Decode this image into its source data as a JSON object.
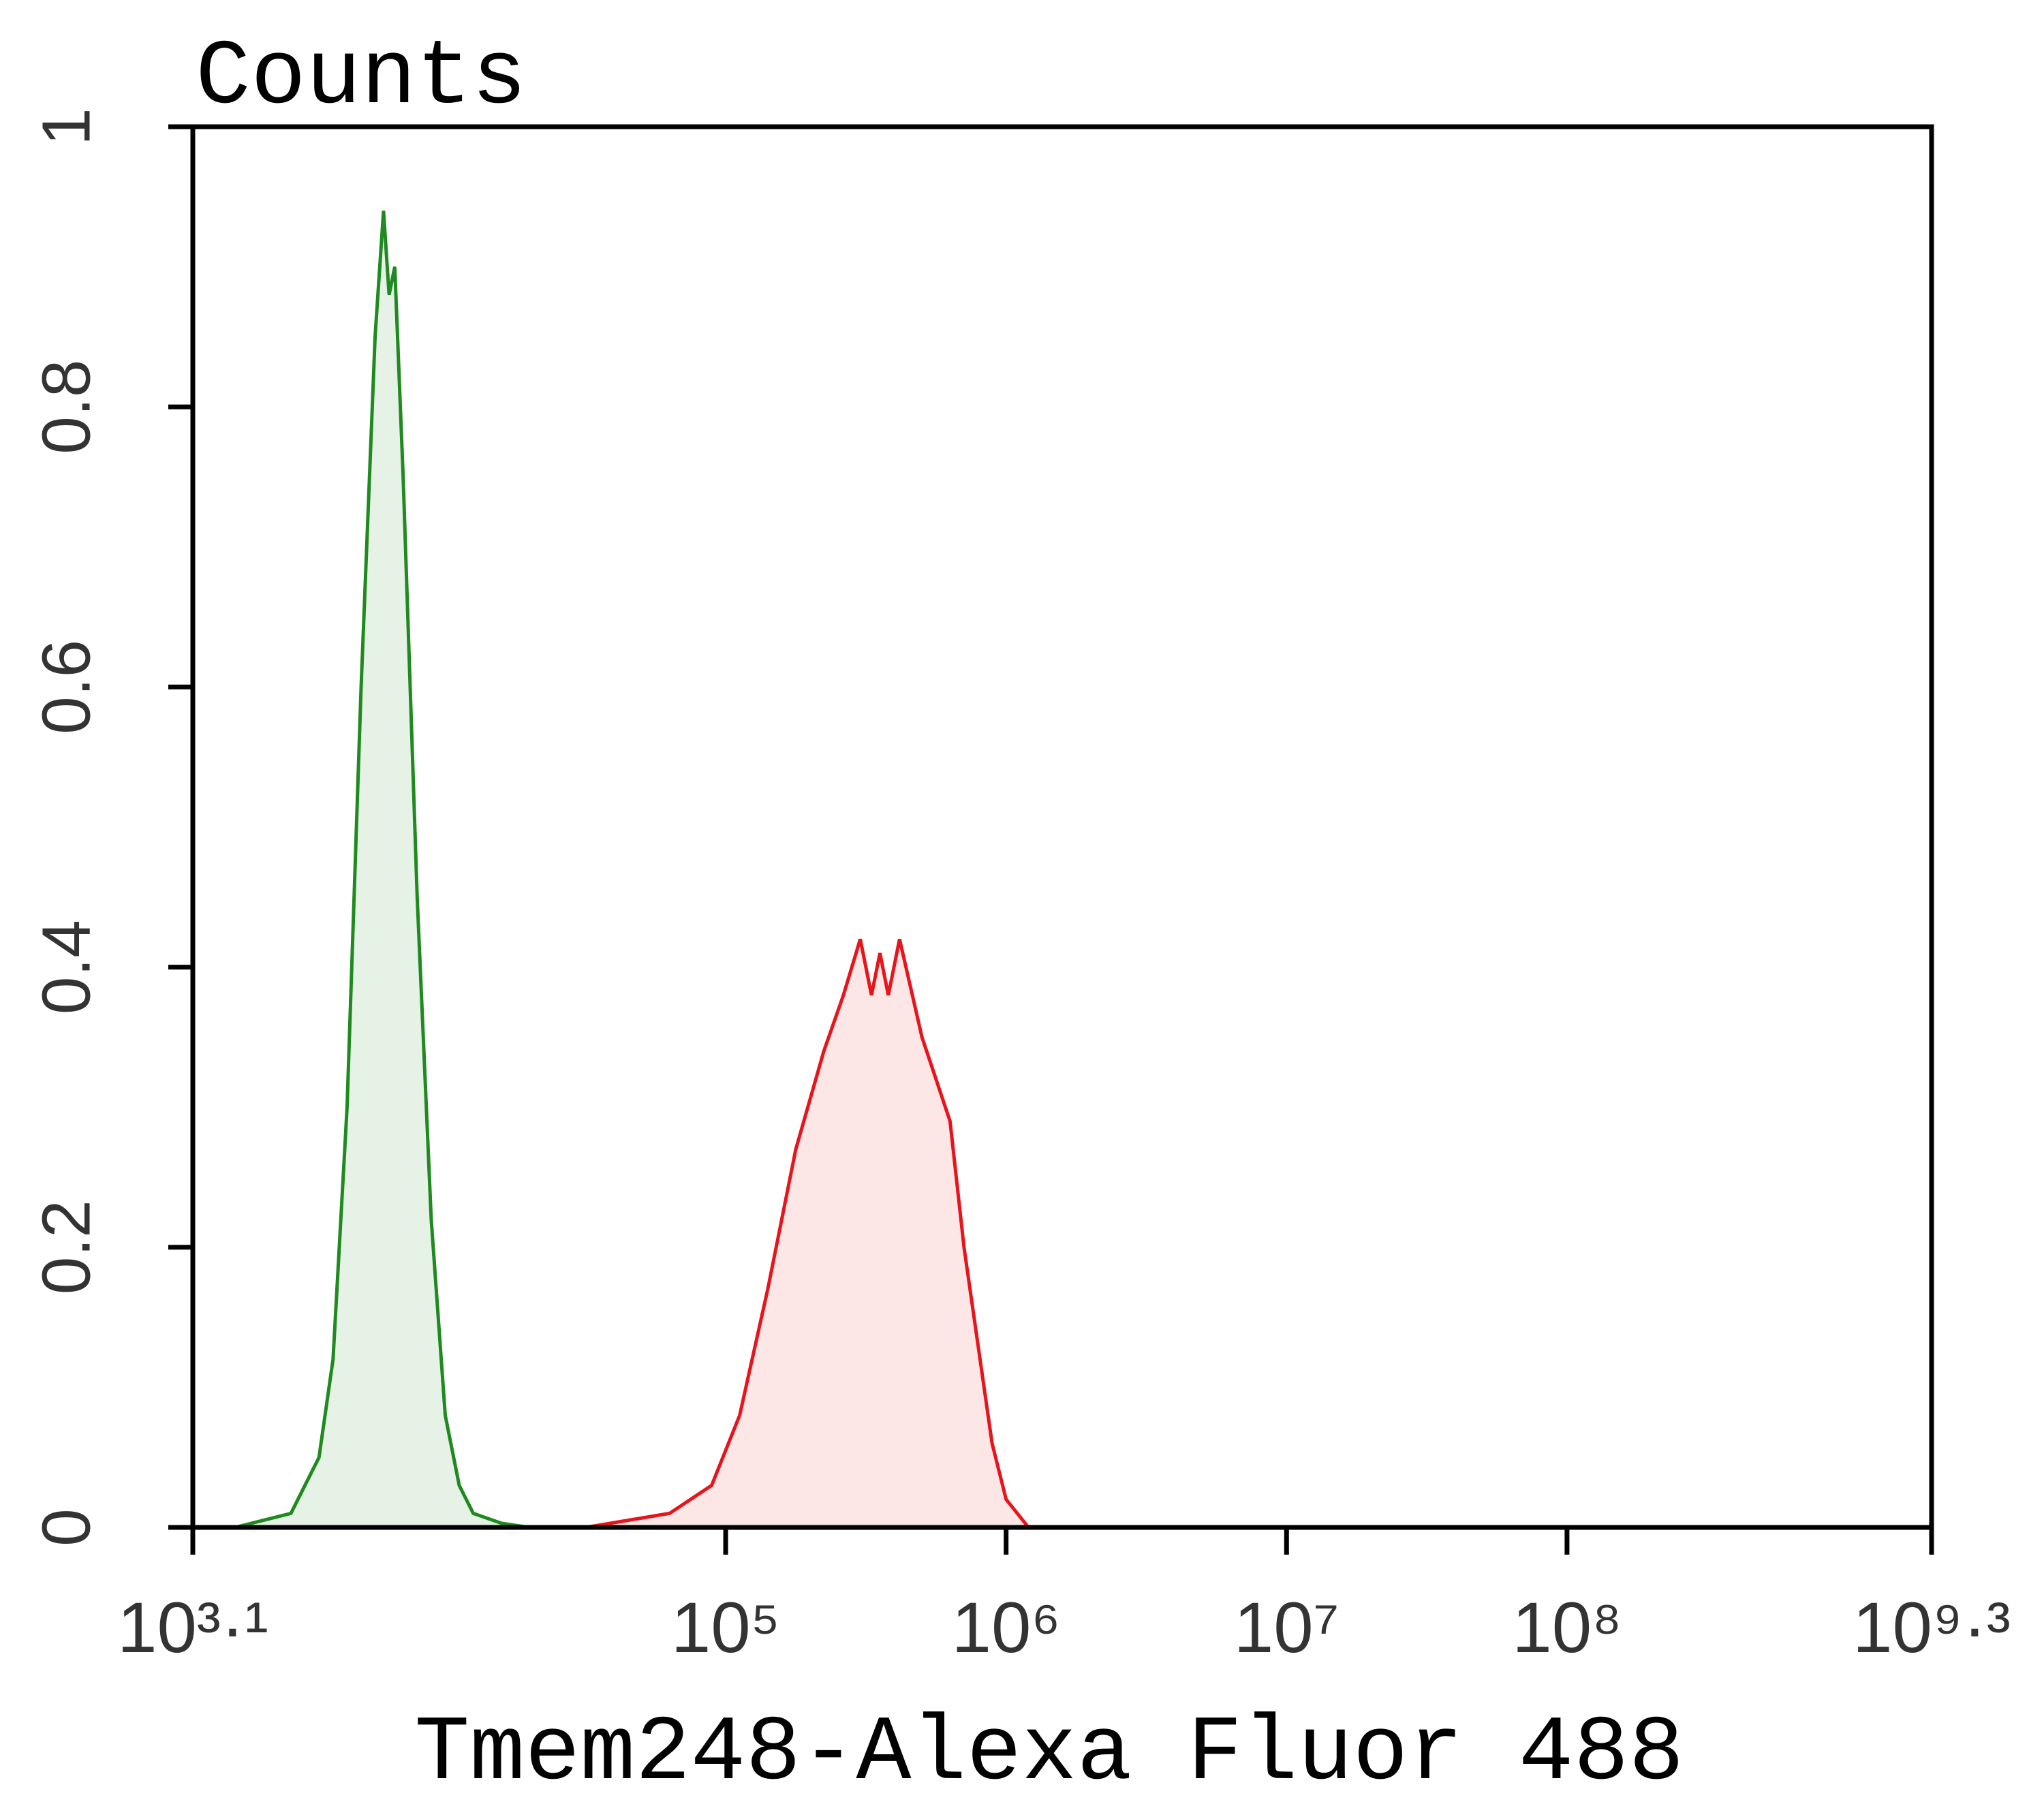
{
  "chart_data": {
    "type": "histogram-overlay",
    "y_label": "Counts",
    "x_label": "Tmem248-Alexa Fluor 488",
    "x_scale": "log",
    "xlim": [
      1258.925,
      1995262315
    ],
    "xticks": [
      {
        "value": 1258.925,
        "label": "10³·¹"
      },
      {
        "value": 100000,
        "label": "10⁵"
      },
      {
        "value": 1000000,
        "label": "10⁶"
      },
      {
        "value": 10000000,
        "label": "10⁷"
      },
      {
        "value": 100000000,
        "label": "10⁸"
      },
      {
        "value": 1995262315,
        "label": "10⁹·³"
      }
    ],
    "ylim": [
      0,
      1
    ],
    "yticks": [
      0,
      0.2,
      0.4,
      0.6,
      0.8,
      1
    ],
    "series": [
      {
        "color": "#1f8a1f",
        "fill": "#e6f2e6",
        "x": [
          1778,
          2239,
          2818,
          3548,
          3981,
          4467,
          5012,
          5623,
          6026,
          6310,
          6607,
          7079,
          7943,
          8913,
          10000,
          11220,
          12589,
          15849,
          19953
        ],
        "values": [
          0,
          0.005,
          0.01,
          0.05,
          0.12,
          0.3,
          0.6,
          0.85,
          0.94,
          0.88,
          0.9,
          0.75,
          0.45,
          0.22,
          0.08,
          0.03,
          0.01,
          0.003,
          0
        ]
      },
      {
        "color": "#e8141c",
        "fill": "#fde6e6",
        "x": [
          31623,
          63096,
          89125,
          112202,
          141254,
          177828,
          223872,
          263027,
          301995,
          331131,
          354813,
          380189,
          416869,
          501187,
          630957,
          707946,
          794328,
          891251,
          1000000,
          1202264
        ],
        "values": [
          0,
          0.01,
          0.03,
          0.08,
          0.17,
          0.27,
          0.34,
          0.38,
          0.42,
          0.38,
          0.41,
          0.38,
          0.42,
          0.35,
          0.29,
          0.2,
          0.13,
          0.06,
          0.02,
          0
        ]
      }
    ]
  }
}
